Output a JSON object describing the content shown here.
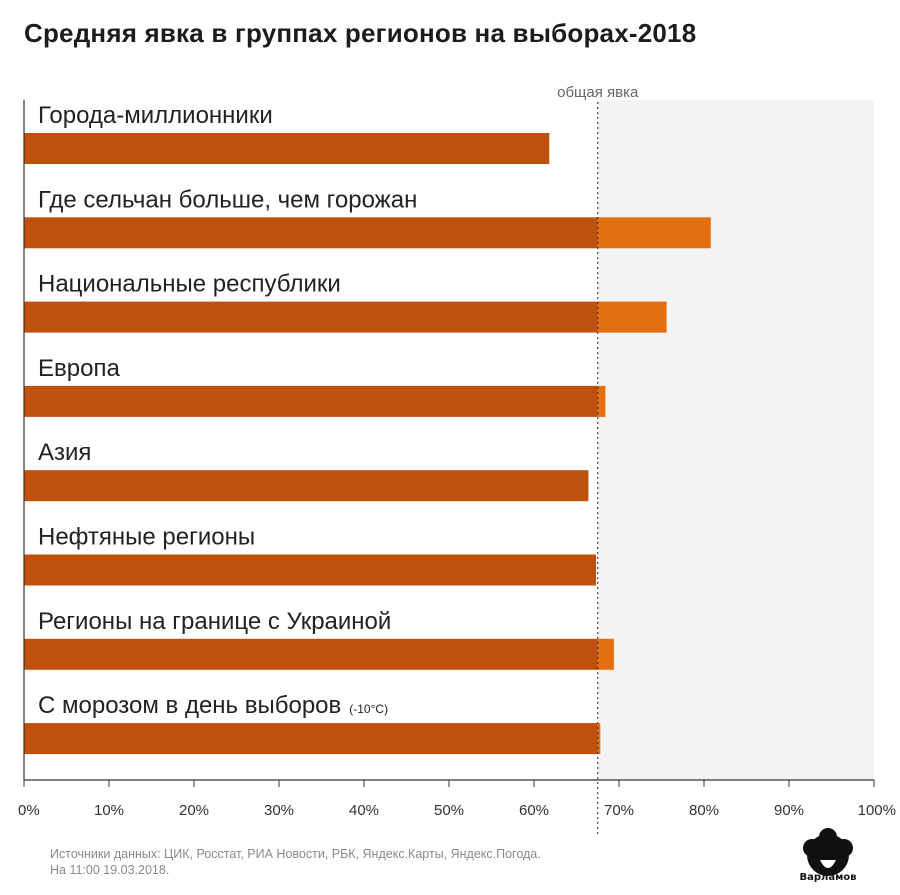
{
  "chart_data": {
    "type": "bar",
    "orientation": "horizontal",
    "title": "Средняя явка в группах регионов на выборах-2018",
    "categories": [
      "Города-миллионники",
      "Где сельчан больше, чем горожан",
      "Национальные республики",
      "Европа",
      "Азия",
      "Нефтяные регионы",
      "Регионы на границе с Украиной",
      "С морозом в день выборов"
    ],
    "category_notes": [
      "",
      "",
      "",
      "",
      "",
      "",
      "",
      "(-10°C)"
    ],
    "values": [
      61.8,
      80.8,
      75.6,
      68.4,
      66.4,
      67.3,
      69.4,
      67.8
    ],
    "reference": {
      "label": "общая явка",
      "value": 67.5
    },
    "xlim": [
      0,
      100
    ],
    "xticks": [
      "0%",
      "10%",
      "20%",
      "30%",
      "40%",
      "50%",
      "60%",
      "70%",
      "80%",
      "90%",
      "100%"
    ],
    "tick_values": [
      0,
      10,
      20,
      30,
      40,
      50,
      60,
      70,
      80,
      90,
      100
    ],
    "colors": {
      "bar": "#c0510c",
      "bar_above_reference": "#e46f10",
      "shade": "#f4f4f4",
      "axis": "#333333"
    }
  },
  "footer": {
    "sources_line1": "Источники данных: ЦИК, Росстат, РИА Новости, РБК, Яндекс.Карты, Яндекс.Погода.",
    "sources_line2": "На 11:00 19.03.2018.",
    "logo_text": "Варламов"
  }
}
